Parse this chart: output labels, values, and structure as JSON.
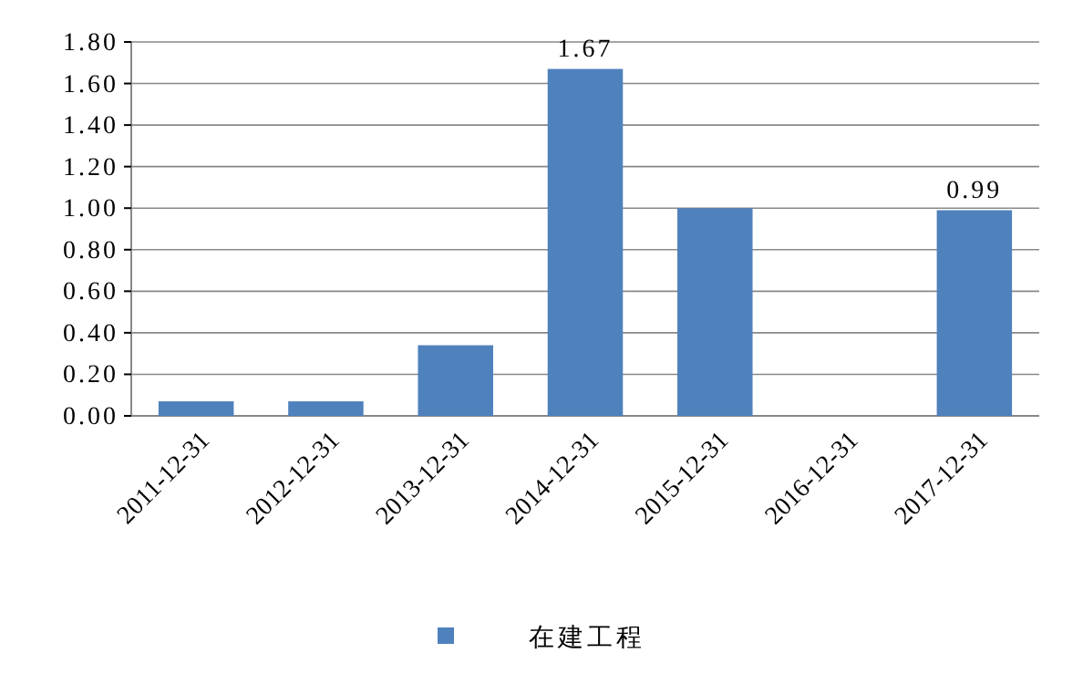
{
  "chart_data": {
    "type": "bar",
    "categories": [
      "2011-12-31",
      "2012-12-31",
      "2013-12-31",
      "2014-12-31",
      "2015-12-31",
      "2016-12-31",
      "2017-12-31"
    ],
    "series": [
      {
        "name": "在建工程",
        "color": "#4f81bd",
        "values": [
          0.07,
          0.07,
          0.34,
          1.67,
          1.0,
          0,
          0.99
        ],
        "value_labels": [
          null,
          null,
          null,
          "1.67",
          null,
          null,
          "0.99"
        ]
      }
    ],
    "ylim": [
      0,
      1.8
    ],
    "yticks": [
      {
        "value": 0,
        "label": "0.00"
      },
      {
        "value": 0.2,
        "label": "0.20"
      },
      {
        "value": 0.4,
        "label": "0.40"
      },
      {
        "value": 0.6,
        "label": "0.60"
      },
      {
        "value": 0.8,
        "label": "0.80"
      },
      {
        "value": 1.0,
        "label": "1.00"
      },
      {
        "value": 1.2,
        "label": "1.20"
      },
      {
        "value": 1.4,
        "label": "1.40"
      },
      {
        "value": 1.6,
        "label": "1.60"
      },
      {
        "value": 1.8,
        "label": "1.80"
      }
    ],
    "grid": "y",
    "legend": "bottom"
  }
}
